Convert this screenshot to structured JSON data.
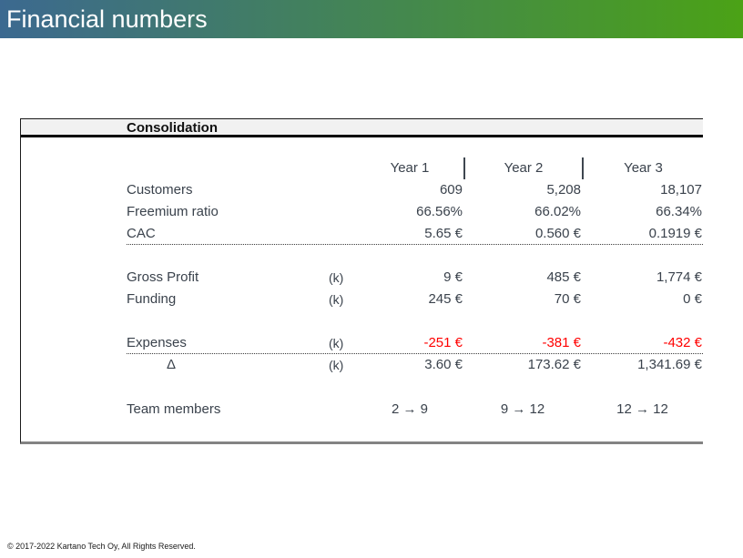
{
  "slide": {
    "title": "Financial numbers",
    "footer": "© 2017-2022 Kartano Tech Oy, All Rights Reserved."
  },
  "colors": {
    "header_gradient_left": "#3c6990",
    "header_gradient_right": "#4ba216",
    "negative_value_red": "#ff0000",
    "table_text": "#3a424c",
    "table_header_background": "#f1f1f1"
  },
  "table": {
    "title": "Consolidation",
    "year_headers": [
      "Year 1",
      "Year 2",
      "Year 3"
    ],
    "rows": [
      {
        "label": "Customers",
        "k": "",
        "y1": "609",
        "y2": "5,208",
        "y3": "18,107"
      },
      {
        "label": "Freemium ratio",
        "k": "",
        "y1": "66.56%",
        "y2": "66.02%",
        "y3": "66.34%"
      },
      {
        "label": "CAC",
        "k": "",
        "y1": "5.65 €",
        "y2": "0.560 €",
        "y3": "0.1919 €"
      },
      {
        "label": "Gross Profit",
        "k": "(k)",
        "y1": "9 €",
        "y2": "485 €",
        "y3": "1,774 €"
      },
      {
        "label": "Funding",
        "k": "(k)",
        "y1": "245 €",
        "y2": "70 €",
        "y3": "0 €"
      },
      {
        "label": "Expenses",
        "k": "(k)",
        "y1": "-251 €",
        "y2": "-381 €",
        "y3": "-432 €"
      },
      {
        "label": "Δ",
        "k": "(k)",
        "y1": "3.60 €",
        "y2": "173.62 €",
        "y3": "1,341.69 €"
      },
      {
        "label": "Team members",
        "k": "",
        "y1": "2 → 9",
        "y2": "9 → 12",
        "y3": "12 → 12"
      }
    ]
  }
}
